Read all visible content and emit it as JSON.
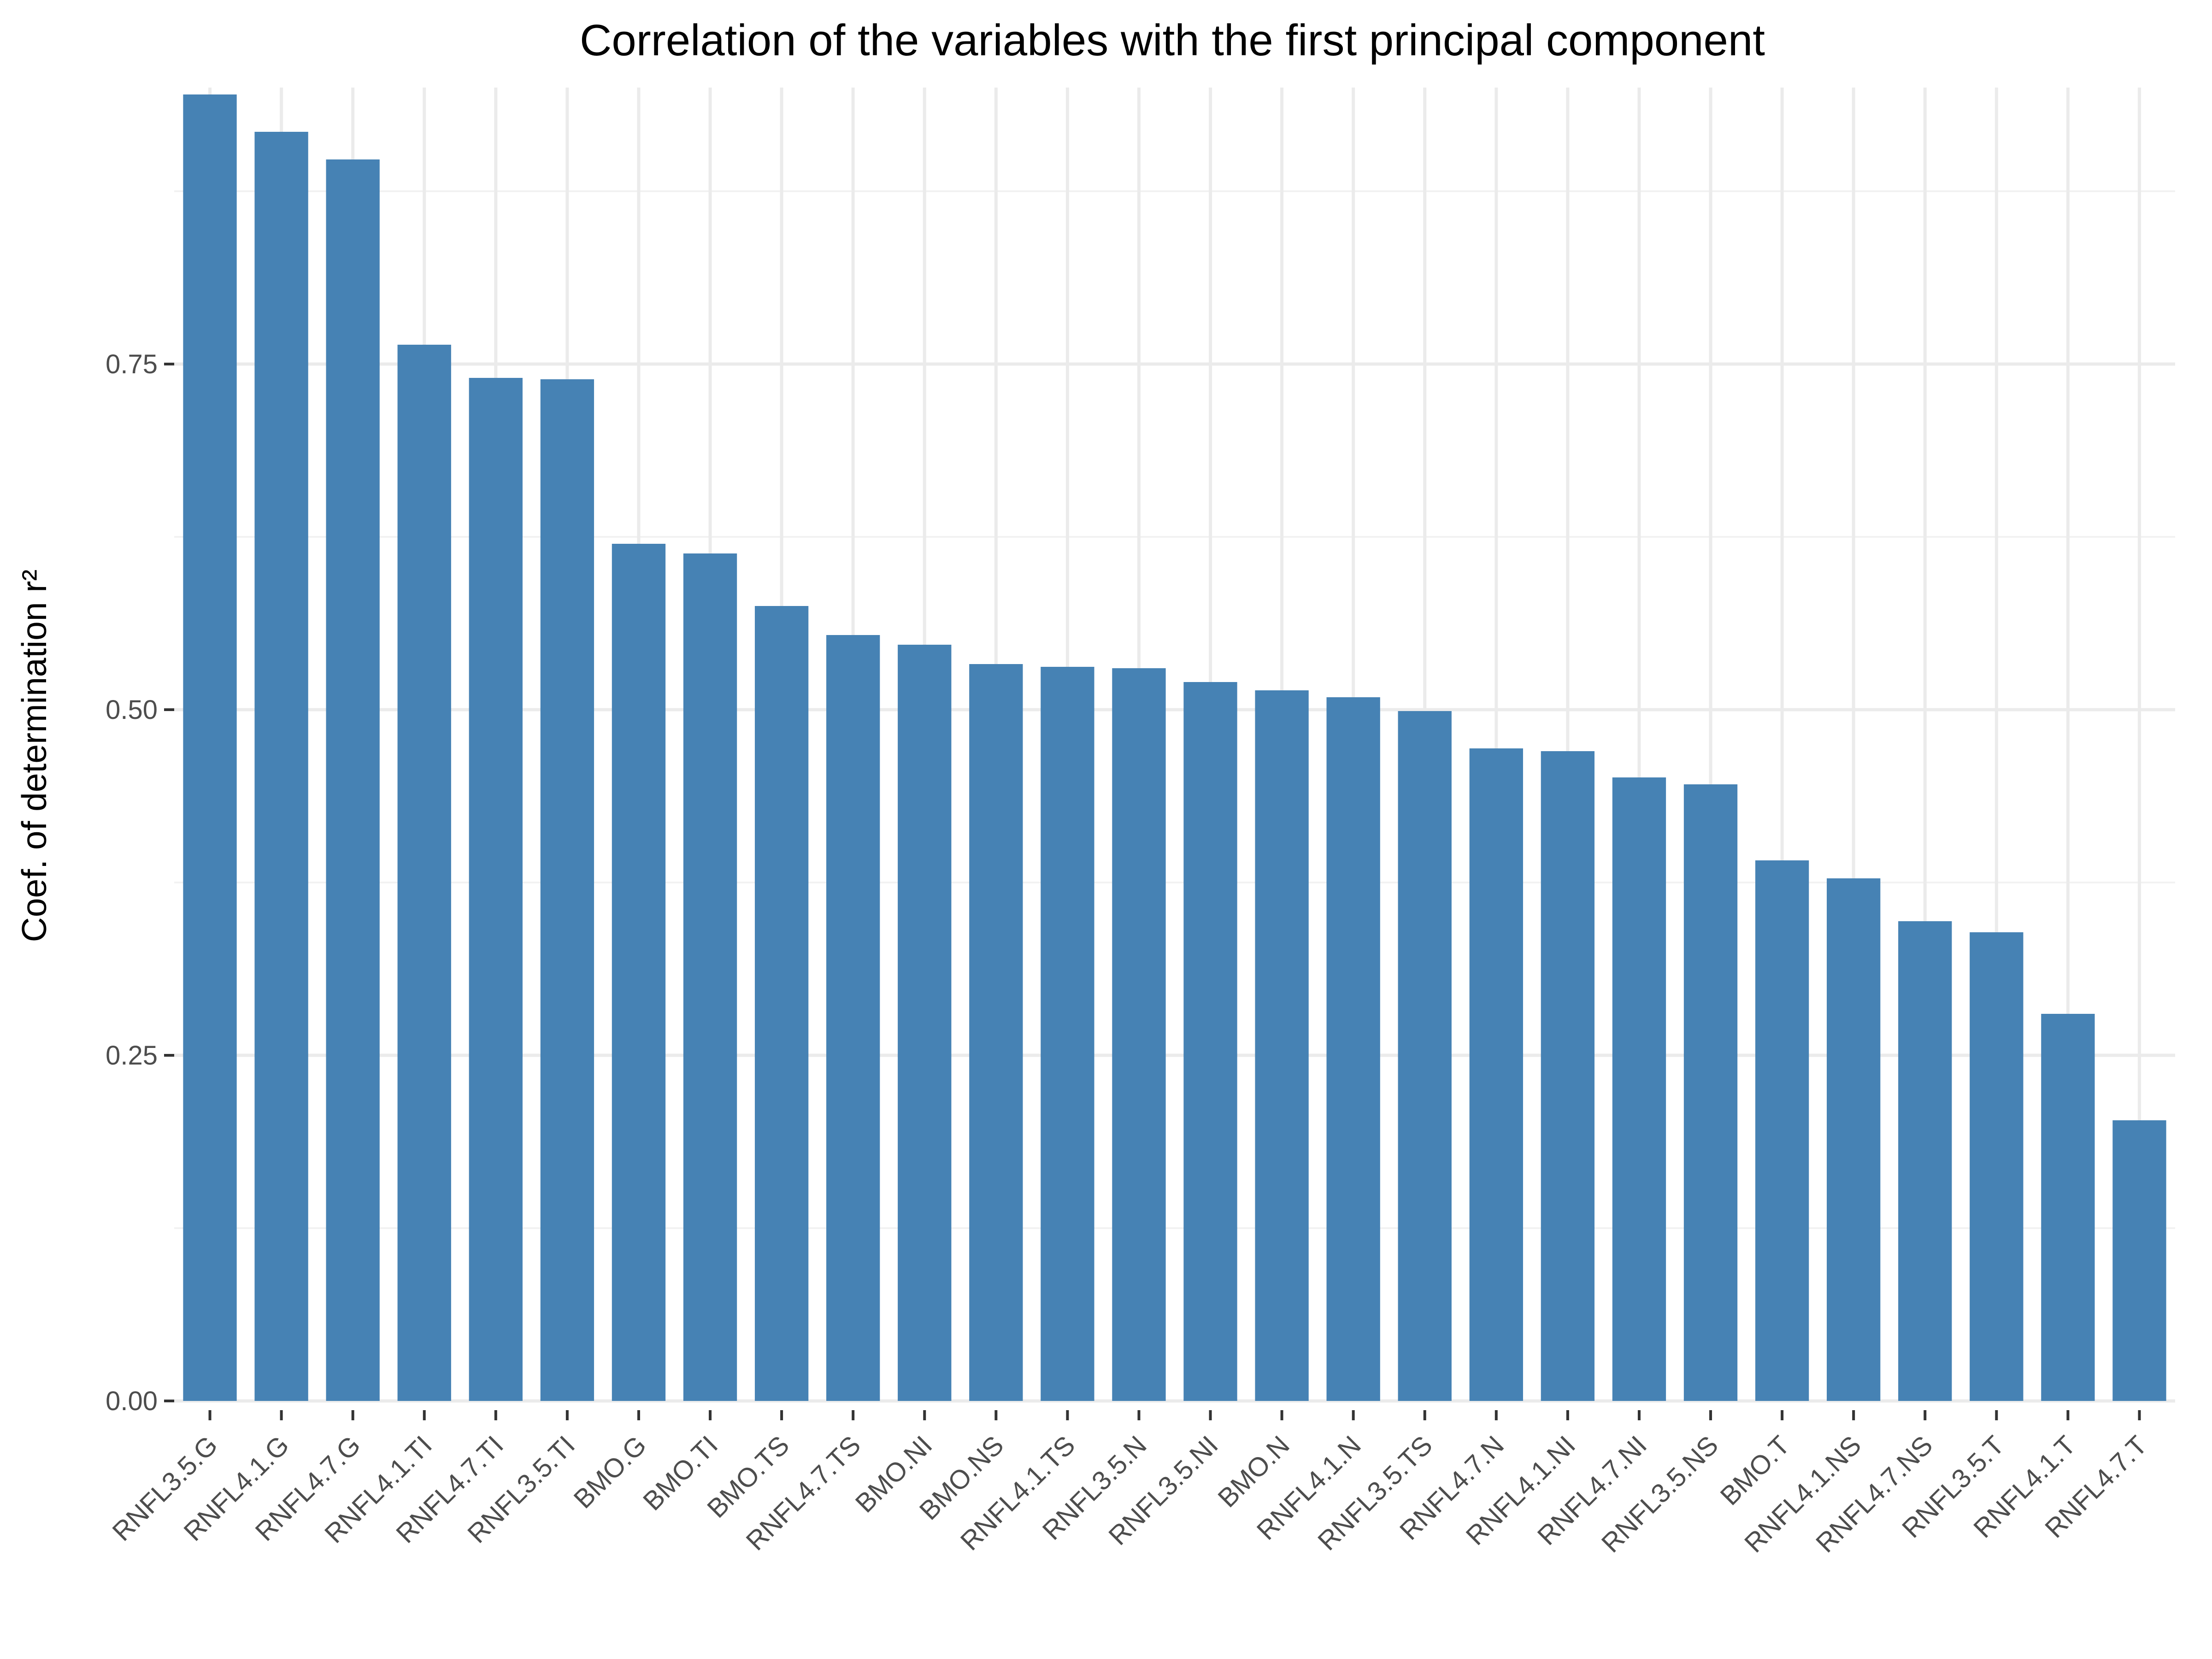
{
  "chart_data": {
    "type": "bar",
    "title": "Correlation of the variables with the first principal component",
    "xlabel": "",
    "ylabel": "Coef. of determination r²",
    "ylim": [
      0,
      0.95
    ],
    "yticks": [
      "0.00",
      "0.25",
      "0.50",
      "0.75"
    ],
    "grid": true,
    "bar_color": "#4682B4",
    "categories": [
      "RNFL3.5.G",
      "RNFL4.1.G",
      "RNFL4.7.G",
      "RNFL4.1.TI",
      "RNFL4.7.TI",
      "RNFL3.5.TI",
      "BMO.G",
      "BMO.TI",
      "BMO.TS",
      "RNFL4.7.TS",
      "BMO.NI",
      "BMO.NS",
      "RNFL4.1.TS",
      "RNFL3.5.N",
      "RNFL3.5.NI",
      "BMO.N",
      "RNFL4.1.N",
      "RNFL3.5.TS",
      "RNFL4.7.N",
      "RNFL4.1.NI",
      "RNFL4.7.NI",
      "RNFL3.5.NS",
      "BMO.T",
      "RNFL4.1.NS",
      "RNFL4.7.NS",
      "RNFL3.5.T",
      "RNFL4.1.T",
      "RNFL4.7.T"
    ],
    "values": [
      0.945,
      0.918,
      0.898,
      0.764,
      0.74,
      0.739,
      0.62,
      0.613,
      0.575,
      0.554,
      0.547,
      0.533,
      0.531,
      0.53,
      0.52,
      0.514,
      0.509,
      0.499,
      0.472,
      0.47,
      0.451,
      0.446,
      0.391,
      0.378,
      0.347,
      0.339,
      0.28,
      0.203
    ]
  }
}
